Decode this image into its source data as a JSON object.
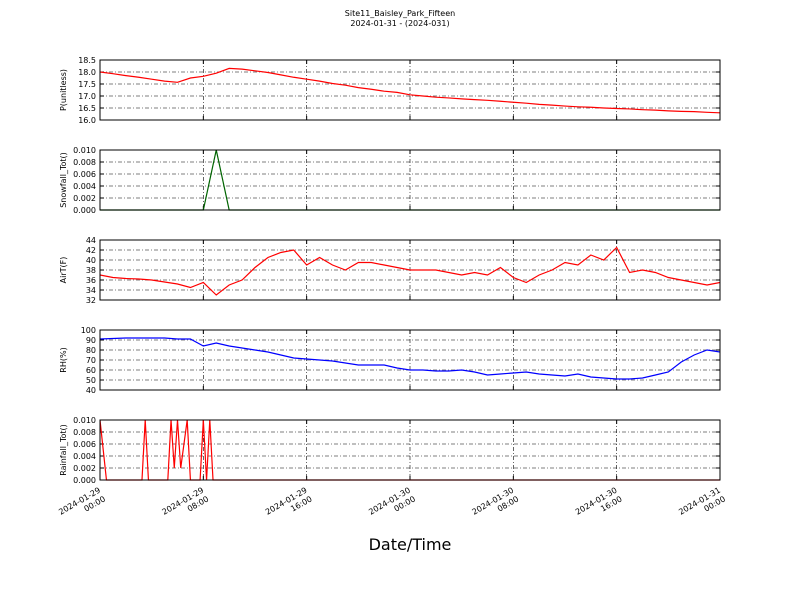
{
  "title": "Site11_Baisley_Park_Fifteen",
  "subtitle": "2024-01-31 - (2024-031)",
  "xlabel": "Date/Time",
  "xlim": [
    "2024-01-29 00:00",
    "2024-01-31 00:00"
  ],
  "xticks": [
    "2024-01-29 00:00",
    "2024-01-29 08:00",
    "2024-01-29 16:00",
    "2024-01-30 00:00",
    "2024-01-30 08:00",
    "2024-01-30 16:00",
    "2024-01-31 00:00"
  ],
  "x": [
    "2024-01-29 00:00",
    "2024-01-29 01:00",
    "2024-01-29 02:00",
    "2024-01-29 03:00",
    "2024-01-29 04:00",
    "2024-01-29 05:00",
    "2024-01-29 06:00",
    "2024-01-29 07:00",
    "2024-01-29 08:00",
    "2024-01-29 09:00",
    "2024-01-29 10:00",
    "2024-01-29 11:00",
    "2024-01-29 12:00",
    "2024-01-29 13:00",
    "2024-01-29 14:00",
    "2024-01-29 15:00",
    "2024-01-29 16:00",
    "2024-01-29 17:00",
    "2024-01-29 18:00",
    "2024-01-29 19:00",
    "2024-01-29 20:00",
    "2024-01-29 21:00",
    "2024-01-29 22:00",
    "2024-01-29 23:00",
    "2024-01-30 00:00",
    "2024-01-30 01:00",
    "2024-01-30 02:00",
    "2024-01-30 03:00",
    "2024-01-30 04:00",
    "2024-01-30 05:00",
    "2024-01-30 06:00",
    "2024-01-30 07:00",
    "2024-01-30 08:00",
    "2024-01-30 09:00",
    "2024-01-30 10:00",
    "2024-01-30 11:00",
    "2024-01-30 12:00",
    "2024-01-30 13:00",
    "2024-01-30 14:00",
    "2024-01-30 15:00",
    "2024-01-30 16:00",
    "2024-01-30 17:00",
    "2024-01-30 18:00",
    "2024-01-30 19:00",
    "2024-01-30 20:00",
    "2024-01-30 21:00",
    "2024-01-30 22:00",
    "2024-01-30 23:00",
    "2024-01-31 00:00"
  ],
  "chart_data": [
    {
      "type": "line",
      "ylabel": "P(unitless)",
      "color": "#ff0000",
      "grid": true,
      "ylim": [
        16.0,
        18.5
      ],
      "yticks": [
        {
          "value": 16.0,
          "label": "16.0"
        },
        {
          "value": 16.5,
          "label": "16.5"
        },
        {
          "value": 17.0,
          "label": "17.0"
        },
        {
          "value": 17.5,
          "label": "17.5"
        },
        {
          "value": 18.0,
          "label": "18.0"
        },
        {
          "value": 18.5,
          "label": "18.5"
        }
      ],
      "values": [
        18.0,
        17.93,
        17.85,
        17.78,
        17.7,
        17.62,
        17.57,
        17.75,
        17.82,
        17.95,
        18.15,
        18.12,
        18.05,
        17.98,
        17.88,
        17.78,
        17.7,
        17.62,
        17.52,
        17.45,
        17.35,
        17.28,
        17.2,
        17.15,
        17.05,
        17.0,
        16.95,
        16.92,
        16.88,
        16.85,
        16.82,
        16.78,
        16.74,
        16.7,
        16.65,
        16.62,
        16.58,
        16.55,
        16.53,
        16.5,
        16.48,
        16.46,
        16.43,
        16.41,
        16.38,
        16.36,
        16.35,
        16.32,
        16.3
      ]
    },
    {
      "type": "line",
      "ylabel": "Snowfall_Tot()",
      "color": "#006400",
      "grid": true,
      "ylim": [
        0,
        0.01
      ],
      "yticks": [
        {
          "value": 0,
          "label": "0.000"
        },
        {
          "value": 0.002,
          "label": "0.002"
        },
        {
          "value": 0.004,
          "label": "0.004"
        },
        {
          "value": 0.006,
          "label": "0.006"
        },
        {
          "value": 0.008,
          "label": "0.008"
        },
        {
          "value": 0.01,
          "label": "0.010"
        }
      ],
      "values": [
        0,
        0,
        0,
        0,
        0,
        0,
        0,
        0,
        0,
        0.01,
        0,
        0,
        0,
        0,
        0,
        0,
        0,
        0,
        0,
        0,
        0,
        0,
        0,
        0,
        0,
        0,
        0,
        0,
        0,
        0,
        0,
        0,
        0,
        0,
        0,
        0,
        0,
        0,
        0,
        0,
        0,
        0,
        0,
        0,
        0,
        0,
        0,
        0,
        0
      ]
    },
    {
      "type": "line",
      "ylabel": "AirT(F)",
      "color": "#ff0000",
      "grid": true,
      "ylim": [
        32,
        44
      ],
      "yticks": [
        32,
        34,
        36,
        38,
        40,
        42,
        44
      ],
      "values": [
        37,
        36.5,
        36.3,
        36.2,
        36,
        35.6,
        35.2,
        34.5,
        35.5,
        33,
        35,
        36,
        38.5,
        40.5,
        41.5,
        42,
        39,
        40.5,
        39,
        38,
        39.5,
        39.5,
        39,
        38.5,
        38,
        38,
        38,
        37.5,
        37,
        37.5,
        37,
        38.5,
        36.5,
        35.5,
        37,
        38,
        39.5,
        39,
        41,
        40,
        42.5,
        37.5,
        38,
        37.5,
        36.5,
        36,
        35.5,
        35,
        35.5
      ]
    },
    {
      "type": "line",
      "ylabel": "RH(%)",
      "color": "#0000ff",
      "grid": true,
      "ylim": [
        40,
        100
      ],
      "yticks": [
        40,
        50,
        60,
        70,
        80,
        90,
        100
      ],
      "values": [
        91,
        91.5,
        92,
        92,
        92,
        92,
        91,
        91,
        84,
        87,
        84,
        82,
        80,
        78,
        75,
        72,
        71,
        70,
        69,
        67,
        65,
        65,
        65,
        62,
        60,
        60,
        59,
        59,
        60,
        58,
        55,
        56,
        57,
        58,
        56,
        55,
        54,
        56,
        53,
        52,
        51,
        51,
        52,
        55,
        58,
        68,
        75,
        80,
        78
      ]
    },
    {
      "type": "line",
      "ylabel": "Rainfall_Tot()",
      "color": "#ff0000",
      "grid": true,
      "ylim": [
        0,
        0.01
      ],
      "yticks": [
        {
          "value": 0,
          "label": "0.000"
        },
        {
          "value": 0.002,
          "label": "0.002"
        },
        {
          "value": 0.004,
          "label": "0.004"
        },
        {
          "value": 0.006,
          "label": "0.006"
        },
        {
          "value": 0.008,
          "label": "0.008"
        },
        {
          "value": 0.01,
          "label": "0.010"
        }
      ],
      "x": [
        "2024-01-29 00:00",
        "2024-01-29 00:30",
        "2024-01-29 03:15",
        "2024-01-29 03:30",
        "2024-01-29 03:45",
        "2024-01-29 05:15",
        "2024-01-29 05:30",
        "2024-01-29 05:45",
        "2024-01-29 06:00",
        "2024-01-29 06:15",
        "2024-01-29 06:45",
        "2024-01-29 07:00",
        "2024-01-29 07:45",
        "2024-01-29 08:00",
        "2024-01-29 08:15",
        "2024-01-29 08:30",
        "2024-01-29 08:45",
        "2024-01-31 00:00"
      ],
      "values": [
        0.01,
        0,
        0,
        0.01,
        0,
        0,
        0.01,
        0.002,
        0.01,
        0.002,
        0.01,
        0,
        0,
        0.01,
        0,
        0.01,
        0,
        0
      ]
    }
  ]
}
